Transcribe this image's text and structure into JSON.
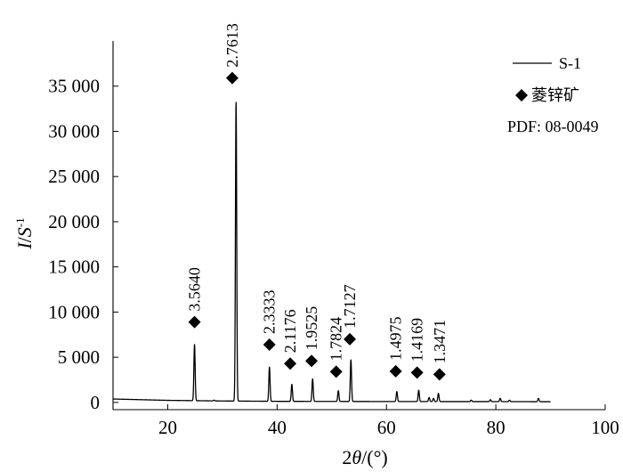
{
  "chart_data": {
    "type": "line",
    "xlabel_prefix": "2",
    "xlabel_theta": "θ",
    "xlabel_suffix": "/(°)",
    "ylabel_i": "I",
    "ylabel_slash": "/",
    "ylabel_s": "S",
    "ylabel_sup": "-1",
    "xlim": [
      10,
      100
    ],
    "ylim": [
      -800,
      40000
    ],
    "x_ticks": [
      20,
      40,
      60,
      80,
      100
    ],
    "x_tick_labels": [
      "20",
      "40",
      "60",
      "80",
      "100"
    ],
    "y_ticks": [
      0,
      5000,
      10000,
      15000,
      20000,
      25000,
      30000,
      35000
    ],
    "y_tick_labels": [
      "0",
      "5 000",
      "10 000",
      "15 000",
      "20 000",
      "25 000",
      "30 000",
      "35 000"
    ],
    "series": [
      {
        "name": "S-1",
        "baseline": [
          [
            10,
            380
          ],
          [
            20,
            230
          ],
          [
            30,
            160
          ],
          [
            40,
            120
          ],
          [
            60,
            100
          ],
          [
            80,
            90
          ],
          [
            90,
            80
          ]
        ],
        "peaks": [
          {
            "x": 24.9,
            "y": 6400
          },
          {
            "x": 28.5,
            "y": 250
          },
          {
            "x": 32.5,
            "y": 33200
          },
          {
            "x": 38.6,
            "y": 3900
          },
          {
            "x": 42.7,
            "y": 2000
          },
          {
            "x": 46.5,
            "y": 2600
          },
          {
            "x": 51.2,
            "y": 1300
          },
          {
            "x": 53.5,
            "y": 4700
          },
          {
            "x": 61.9,
            "y": 1200
          },
          {
            "x": 65.9,
            "y": 1350
          },
          {
            "x": 67.8,
            "y": 550
          },
          {
            "x": 68.6,
            "y": 450
          },
          {
            "x": 69.5,
            "y": 1000
          },
          {
            "x": 75.5,
            "y": 250
          },
          {
            "x": 79.0,
            "y": 300
          },
          {
            "x": 80.8,
            "y": 450
          },
          {
            "x": 82.5,
            "y": 250
          },
          {
            "x": 87.8,
            "y": 450
          }
        ]
      }
    ],
    "markers": [
      {
        "x": 24.9,
        "y": 8900,
        "label": "3.5640"
      },
      {
        "x": 31.8,
        "y": 35900,
        "label": "2.7613"
      },
      {
        "x": 38.6,
        "y": 6400,
        "label": "2.3333"
      },
      {
        "x": 42.4,
        "y": 4300,
        "label": "2.1176"
      },
      {
        "x": 46.3,
        "y": 4600,
        "label": "1.9525"
      },
      {
        "x": 50.8,
        "y": 3400,
        "label": "1.7824"
      },
      {
        "x": 53.3,
        "y": 7000,
        "label": "1.7127"
      },
      {
        "x": 61.7,
        "y": 3450,
        "label": "1.4975"
      },
      {
        "x": 65.6,
        "y": 3300,
        "label": "1.4169"
      },
      {
        "x": 69.7,
        "y": 3100,
        "label": "1.3471"
      }
    ],
    "legend": {
      "line_label": "S-1",
      "marker_label": "菱锌矿",
      "pdf_label": "PDF: 08-0049",
      "position": "top-right"
    }
  }
}
